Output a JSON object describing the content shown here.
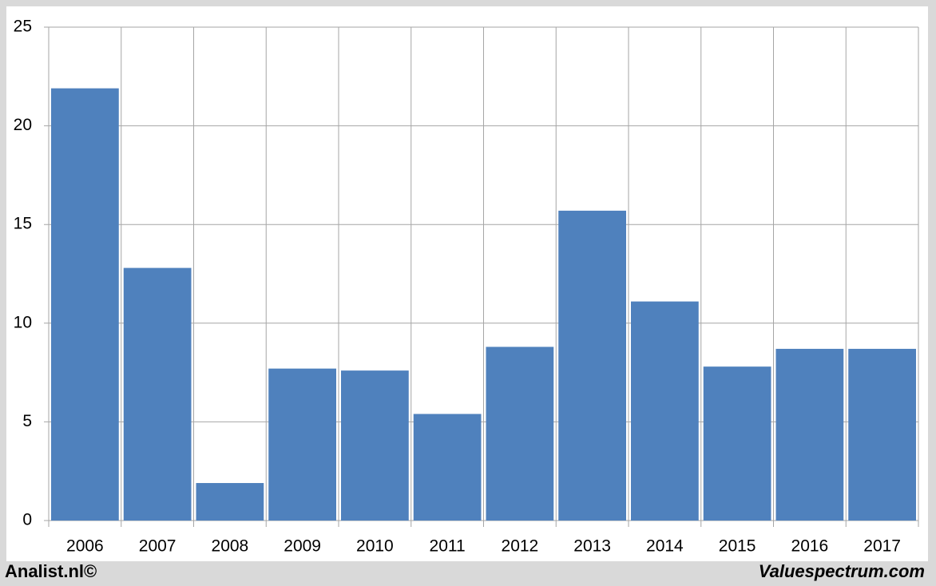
{
  "chart_data": {
    "type": "bar",
    "categories": [
      "2006",
      "2007",
      "2008",
      "2009",
      "2010",
      "2011",
      "2012",
      "2013",
      "2014",
      "2015",
      "2016",
      "2017"
    ],
    "values": [
      21.9,
      12.8,
      1.9,
      7.7,
      7.6,
      5.4,
      8.8,
      15.7,
      11.1,
      7.8,
      8.7,
      8.7
    ],
    "color": "#4f81bd",
    "ylim": [
      0,
      25
    ],
    "yticks": [
      0,
      5,
      10,
      15,
      20,
      25
    ],
    "grid": true,
    "footer_left": "Analist.nl©",
    "footer_right": "Valuespectrum.com"
  }
}
